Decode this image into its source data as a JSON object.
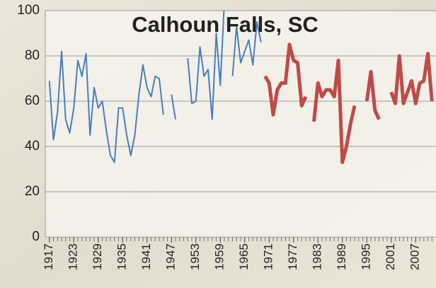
{
  "chart_data": {
    "type": "line",
    "title": "Calhoun Falls, SC",
    "x": [
      1917,
      1918,
      1919,
      1920,
      1921,
      1922,
      1923,
      1924,
      1925,
      1926,
      1927,
      1928,
      1929,
      1930,
      1931,
      1932,
      1933,
      1934,
      1935,
      1936,
      1937,
      1938,
      1939,
      1940,
      1941,
      1942,
      1943,
      1944,
      1945,
      1946,
      1947,
      1948,
      1949,
      1950,
      1951,
      1952,
      1953,
      1954,
      1955,
      1956,
      1957,
      1958,
      1959,
      1960,
      1961,
      1962,
      1963,
      1964,
      1965,
      1966,
      1967,
      1968,
      1969,
      1970,
      1971,
      1972,
      1973,
      1974,
      1975,
      1976,
      1977,
      1978,
      1979,
      1980,
      1981,
      1982,
      1983,
      1984,
      1985,
      1986,
      1987,
      1988,
      1989,
      1990,
      1991,
      1992,
      1993,
      1994,
      1995,
      1996,
      1997,
      1998,
      1999,
      2000,
      2001,
      2002,
      2003,
      2004,
      2005,
      2006,
      2007,
      2008,
      2009,
      2010,
      2011
    ],
    "series": [
      {
        "color": "#4a7ebb",
        "width": 2,
        "values": [
          69,
          43,
          55,
          82,
          52,
          46,
          57,
          78,
          71,
          81,
          45,
          66,
          57,
          60,
          47,
          36,
          33,
          57,
          57,
          45,
          36,
          45,
          63,
          76,
          66,
          62,
          71,
          70,
          54,
          null,
          63,
          52,
          null,
          null,
          79,
          59,
          60,
          84,
          71,
          74,
          52,
          90,
          67,
          104,
          null,
          71,
          93,
          77,
          82,
          87,
          76,
          95,
          86,
          null,
          null,
          null,
          null,
          null,
          null,
          null,
          null,
          null,
          null,
          null,
          null,
          null,
          null,
          null,
          null,
          null,
          null,
          null,
          null,
          null,
          null,
          null,
          null,
          null,
          null,
          null,
          null,
          null,
          null,
          null,
          null,
          null,
          null,
          null,
          null,
          null,
          null,
          null,
          null,
          null,
          null
        ]
      },
      {
        "color": "#be4b48",
        "width": 5,
        "values": [
          null,
          null,
          null,
          null,
          null,
          null,
          null,
          null,
          null,
          null,
          null,
          null,
          null,
          null,
          null,
          null,
          null,
          null,
          null,
          null,
          null,
          null,
          null,
          null,
          null,
          null,
          null,
          null,
          null,
          null,
          null,
          null,
          null,
          null,
          null,
          null,
          null,
          null,
          null,
          null,
          null,
          null,
          null,
          null,
          null,
          null,
          null,
          null,
          null,
          null,
          null,
          null,
          null,
          71,
          68,
          54,
          65,
          68,
          68,
          85,
          78,
          77,
          58,
          62,
          null,
          51,
          68,
          62,
          65,
          65,
          62,
          78,
          33,
          40,
          50,
          58,
          null,
          null,
          60,
          73,
          56,
          52,
          null,
          null,
          64,
          59,
          80,
          59,
          64,
          69,
          59,
          68,
          69,
          81,
          60
        ]
      }
    ],
    "xlim": [
      1916,
      2012
    ],
    "xticks": [
      1917,
      1923,
      1929,
      1935,
      1941,
      1947,
      1953,
      1959,
      1965,
      1971,
      1977,
      1983,
      1989,
      1995,
      2001,
      2007
    ],
    "ylim": [
      0,
      100
    ],
    "yticks": [
      0,
      20,
      40,
      60,
      80,
      100
    ],
    "grid": true
  }
}
